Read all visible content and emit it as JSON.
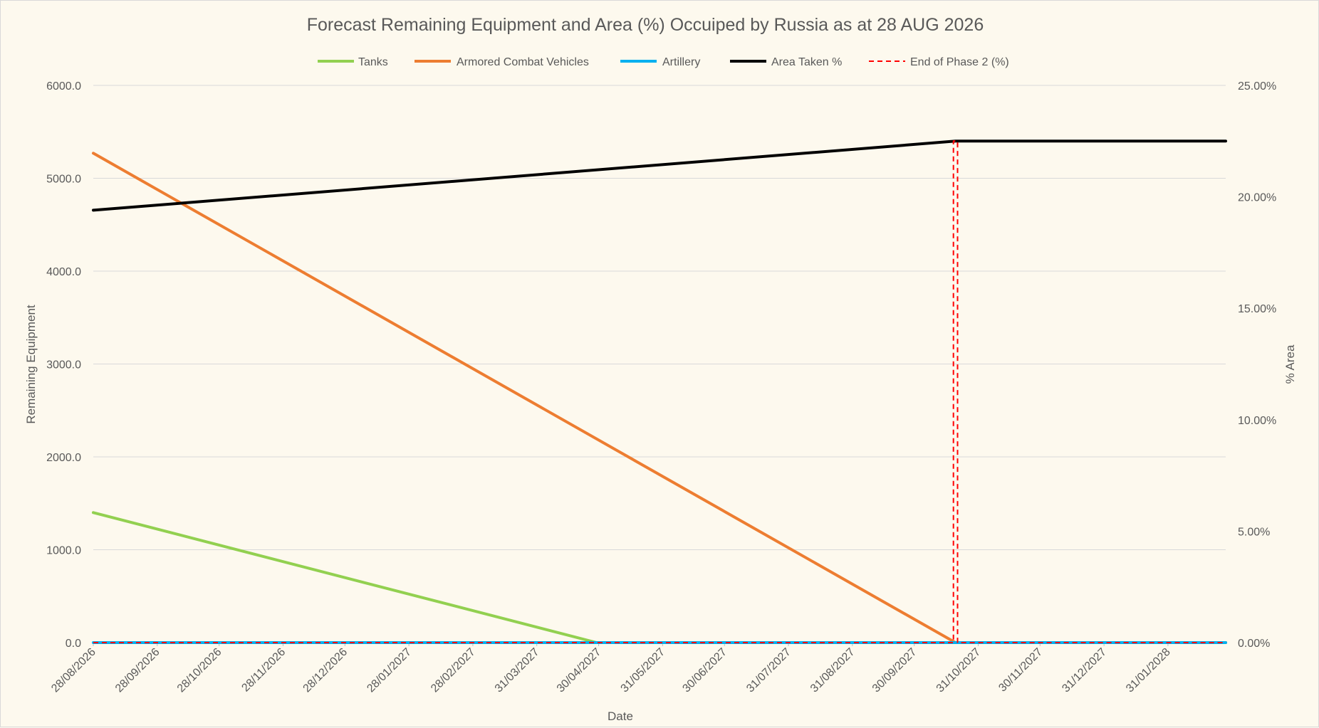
{
  "chart_data": {
    "type": "line",
    "title": "Forecast Remaining Equipment and Area (%) Occuiped by Russia as at 28 AUG 2026",
    "xlabel": "Date",
    "ylabel": "Remaining Equipment",
    "y2label": "% Area",
    "x_range": [
      "28/08/2026",
      "28/02/2028"
    ],
    "ylim": [
      0,
      6000
    ],
    "y2lim": [
      0,
      25
    ],
    "y_ticks": [
      0,
      1000,
      2000,
      3000,
      4000,
      5000,
      6000
    ],
    "y_tick_labels": [
      "0.0",
      "1000.0",
      "2000.0",
      "3000.0",
      "4000.0",
      "5000.0",
      "6000.0"
    ],
    "y2_ticks": [
      0,
      5,
      10,
      15,
      20,
      25
    ],
    "y2_tick_labels": [
      "0.00%",
      "5.00%",
      "10.00%",
      "15.00%",
      "20.00%",
      "25.00%"
    ],
    "x_ticks": [
      "28/08/2026",
      "28/09/2026",
      "28/10/2026",
      "28/11/2026",
      "28/12/2026",
      "28/01/2027",
      "28/02/2027",
      "31/03/2027",
      "30/04/2027",
      "31/05/2027",
      "30/06/2027",
      "31/07/2027",
      "31/08/2027",
      "30/09/2027",
      "31/10/2027",
      "30/11/2027",
      "31/12/2027",
      "31/01/2028"
    ],
    "grid": true,
    "legend_position": "top",
    "series": [
      {
        "name": "Tanks",
        "color": "#92d050",
        "axis": "left",
        "style": "solid",
        "points": [
          [
            "28/08/2026",
            1400
          ],
          [
            "29/04/2027",
            0
          ],
          [
            "28/02/2028",
            0
          ]
        ]
      },
      {
        "name": "Armored Combat Vehicles",
        "color": "#ed7d31",
        "axis": "left",
        "style": "solid",
        "points": [
          [
            "28/08/2026",
            5270
          ],
          [
            "20/10/2027",
            0
          ],
          [
            "28/02/2028",
            0
          ]
        ]
      },
      {
        "name": "Artillery",
        "color": "#00b0f0",
        "axis": "left",
        "style": "solid",
        "points": [
          [
            "28/08/2026",
            0
          ],
          [
            "28/02/2028",
            0
          ]
        ]
      },
      {
        "name": "Area Taken %",
        "color": "#000000",
        "axis": "right",
        "style": "solid",
        "points": [
          [
            "28/08/2026",
            19.4
          ],
          [
            "20/10/2027",
            22.5
          ],
          [
            "28/02/2028",
            22.5
          ]
        ]
      },
      {
        "name": "End of Phase 2 (%)",
        "color": "#ff0000",
        "axis": "right",
        "style": "dashed",
        "points": [
          [
            "28/08/2026",
            0
          ],
          [
            "19/10/2027",
            0
          ],
          [
            "19/10/2027",
            22.5
          ],
          [
            "21/10/2027",
            22.5
          ],
          [
            "21/10/2027",
            0
          ],
          [
            "28/02/2028",
            0
          ]
        ]
      }
    ]
  }
}
